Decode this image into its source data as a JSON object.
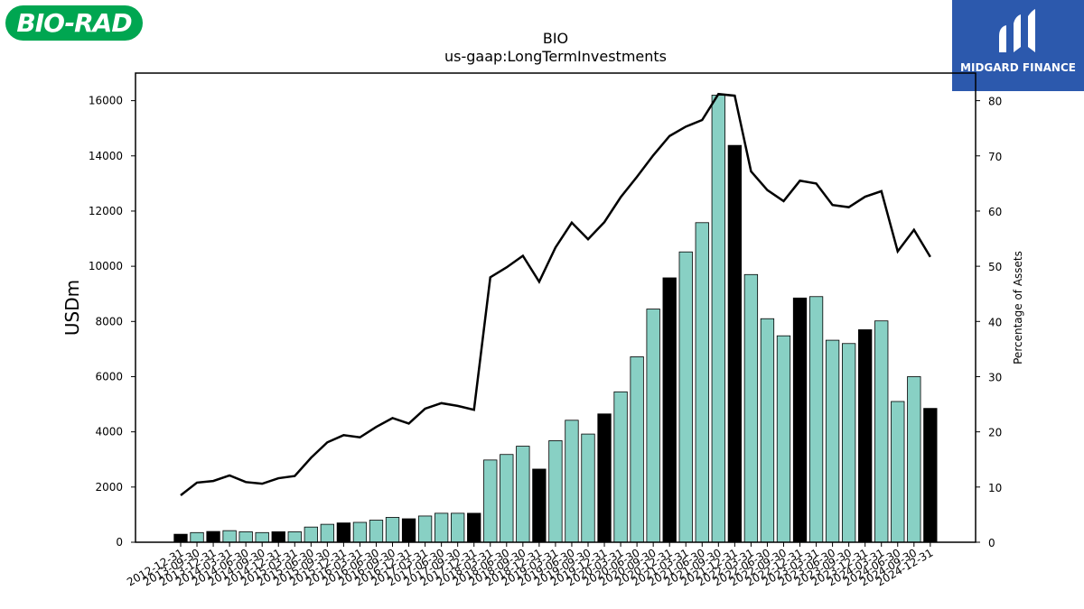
{
  "branding": {
    "left_logo_text": "BIO-RAD",
    "right_logo_text": "MIDGARD FINANCE",
    "left_logo_color": "#00a651",
    "right_logo_color": "#2c59ad"
  },
  "chart_data": {
    "type": "bar",
    "title": "BIO",
    "subtitle": "us-gaap:LongTermInvestments",
    "ylabel": "USDm",
    "y2label": "Percentage of Assets",
    "ylim": [
      0,
      17000
    ],
    "y2lim": [
      0,
      85
    ],
    "yticks": [
      0,
      2000,
      4000,
      6000,
      8000,
      10000,
      12000,
      14000,
      16000
    ],
    "y2ticks": [
      0,
      10,
      20,
      30,
      40,
      50,
      60,
      70,
      80
    ],
    "bar_color_quarter": "#88d0c4",
    "bar_color_year_end": "#000000",
    "line_color": "#000000",
    "categories": [
      "2012-12-31",
      "2013-09-30",
      "2013-12-31",
      "2014-03-31",
      "2014-06-30",
      "2014-09-30",
      "2014-12-31",
      "2015-03-31",
      "2015-06-30",
      "2015-09-30",
      "2015-12-31",
      "2016-03-31",
      "2016-06-30",
      "2016-09-30",
      "2016-12-31",
      "2017-03-31",
      "2017-06-30",
      "2017-09-30",
      "2017-12-31",
      "2018-03-31",
      "2018-06-30",
      "2018-09-30",
      "2018-12-31",
      "2019-03-31",
      "2019-06-30",
      "2019-09-30",
      "2019-12-31",
      "2020-03-31",
      "2020-06-30",
      "2020-09-30",
      "2020-12-31",
      "2021-03-31",
      "2021-06-30",
      "2021-09-30",
      "2021-12-31",
      "2022-03-31",
      "2022-06-30",
      "2022-09-30",
      "2022-12-31",
      "2023-03-31",
      "2023-06-30",
      "2023-09-30",
      "2023-12-31",
      "2024-03-31",
      "2024-06-30",
      "2024-09-30",
      "2024-12-31"
    ],
    "series": [
      {
        "name": "USDm",
        "kind": "bar",
        "values": [
          290,
          350,
          390,
          420,
          380,
          350,
          380,
          380,
          550,
          650,
          700,
          720,
          800,
          900,
          850,
          950,
          1050,
          1050,
          1050,
          2980,
          3180,
          3480,
          2650,
          3680,
          4420,
          3920,
          4650,
          5450,
          6720,
          8450,
          9580,
          10520,
          11580,
          16200,
          14380,
          9700,
          8100,
          7480,
          8850,
          8900,
          7320,
          7200,
          7700,
          8020,
          5100,
          6000,
          4850
        ],
        "year_end": [
          true,
          false,
          true,
          false,
          false,
          false,
          true,
          false,
          false,
          false,
          true,
          false,
          false,
          false,
          true,
          false,
          false,
          false,
          true,
          false,
          false,
          false,
          true,
          false,
          false,
          false,
          true,
          false,
          false,
          false,
          true,
          false,
          false,
          false,
          true,
          false,
          false,
          false,
          true,
          false,
          false,
          false,
          true,
          false,
          false,
          false,
          true
        ]
      },
      {
        "name": "Percentage of Assets",
        "kind": "line",
        "values": [
          8.5,
          10.8,
          11.1,
          12.1,
          10.9,
          10.6,
          11.6,
          12.0,
          15.3,
          18.1,
          19.4,
          19.0,
          20.9,
          22.5,
          21.5,
          24.2,
          25.2,
          24.7,
          24.0,
          48.0,
          49.8,
          51.9,
          47.2,
          53.4,
          57.9,
          54.9,
          58.0,
          62.5,
          66.2,
          70.1,
          73.6,
          75.3,
          76.5,
          81.2,
          80.9,
          67.2,
          63.8,
          61.8,
          65.5,
          65.0,
          61.1,
          60.7,
          62.6,
          63.6,
          52.7,
          56.6,
          51.7
        ]
      }
    ]
  }
}
